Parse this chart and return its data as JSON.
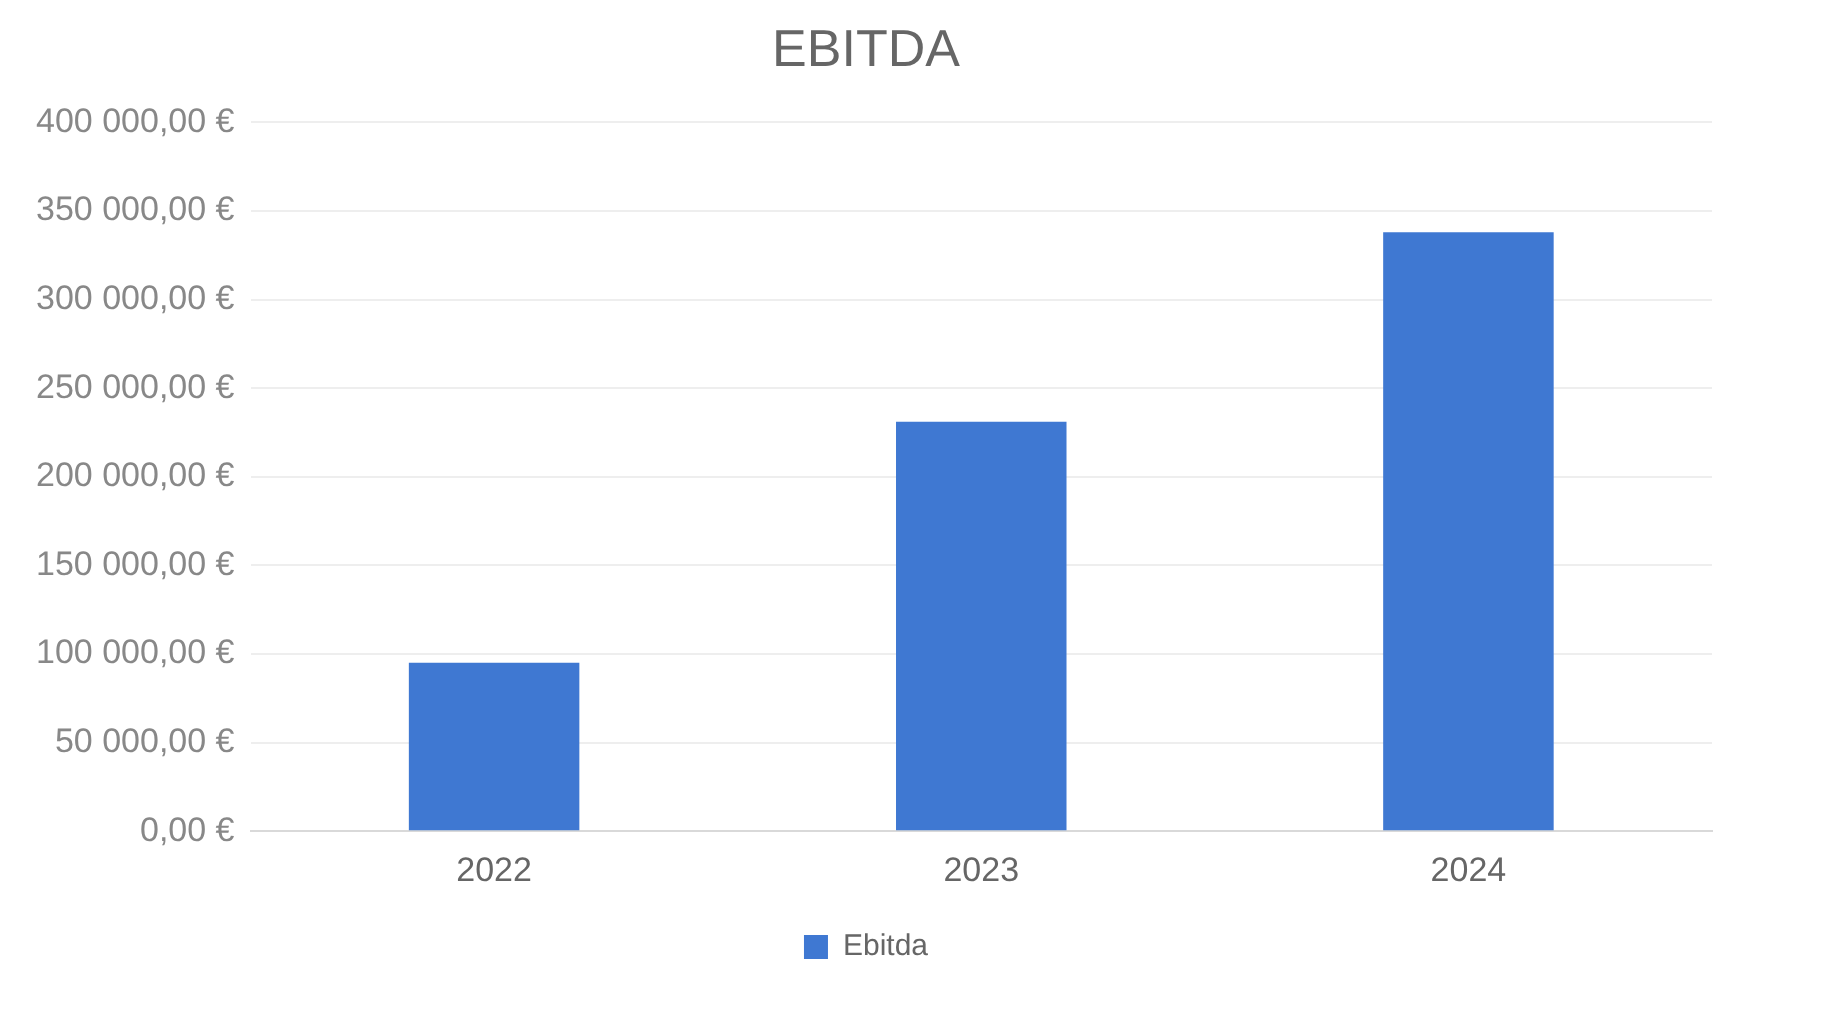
{
  "chart_data": {
    "type": "bar",
    "title": "EBITDA",
    "categories": [
      "2022",
      "2023",
      "2024"
    ],
    "series": [
      {
        "name": "Ebitda",
        "color": "#3f78d2",
        "values": [
          95000,
          231000,
          338000
        ]
      }
    ],
    "ylim": [
      0,
      400000
    ],
    "yticks": [
      {
        "value": 0,
        "label": "0,00 €"
      },
      {
        "value": 50000,
        "label": "50 000,00 €"
      },
      {
        "value": 100000,
        "label": "100 000,00 €"
      },
      {
        "value": 150000,
        "label": "150 000,00 €"
      },
      {
        "value": 200000,
        "label": "200 000,00 €"
      },
      {
        "value": 250000,
        "label": "250 000,00 €"
      },
      {
        "value": 300000,
        "label": "300 000,00 €"
      },
      {
        "value": 350000,
        "label": "350 000,00 €"
      },
      {
        "value": 400000,
        "label": "400 000,00 €"
      }
    ],
    "grid": "y",
    "legend": "bottom"
  }
}
